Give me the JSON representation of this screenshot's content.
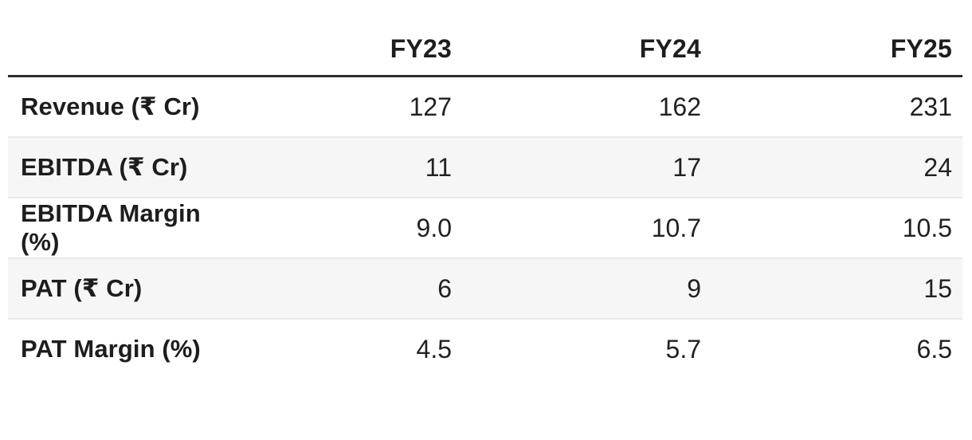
{
  "table": {
    "columns": [
      "",
      "FY23",
      "FY24",
      "FY25"
    ],
    "rows": [
      {
        "label": "Revenue (₹ Cr)",
        "values": [
          "127",
          "162",
          "231"
        ]
      },
      {
        "label": "EBITDA (₹ Cr)",
        "values": [
          "11",
          "17",
          "24"
        ]
      },
      {
        "label": "EBITDA Margin (%)",
        "values": [
          "9.0",
          "10.7",
          "10.5"
        ]
      },
      {
        "label": "PAT (₹ Cr)",
        "values": [
          "6",
          "9",
          "15"
        ]
      },
      {
        "label": "PAT Margin (%)",
        "values": [
          "4.5",
          "5.7",
          "6.5"
        ]
      }
    ]
  },
  "colors": {
    "header_rule": "#2e2e2e",
    "row_separator": "#e9e9e9",
    "row_stripe": "#f6f6f7",
    "text": "#1d1d1d"
  },
  "chart_data": {
    "type": "table",
    "categories": [
      "FY23",
      "FY24",
      "FY25"
    ],
    "series": [
      {
        "name": "Revenue (₹ Cr)",
        "values": [
          127,
          162,
          231
        ]
      },
      {
        "name": "EBITDA (₹ Cr)",
        "values": [
          11,
          17,
          24
        ]
      },
      {
        "name": "EBITDA Margin (%)",
        "values": [
          9.0,
          10.7,
          10.5
        ]
      },
      {
        "name": "PAT (₹ Cr)",
        "values": [
          6,
          9,
          15
        ]
      },
      {
        "name": "PAT Margin (%)",
        "values": [
          4.5,
          5.7,
          6.5
        ]
      }
    ],
    "title": "",
    "xlabel": "",
    "ylabel": "",
    "legend_position": "none",
    "grid": false
  }
}
